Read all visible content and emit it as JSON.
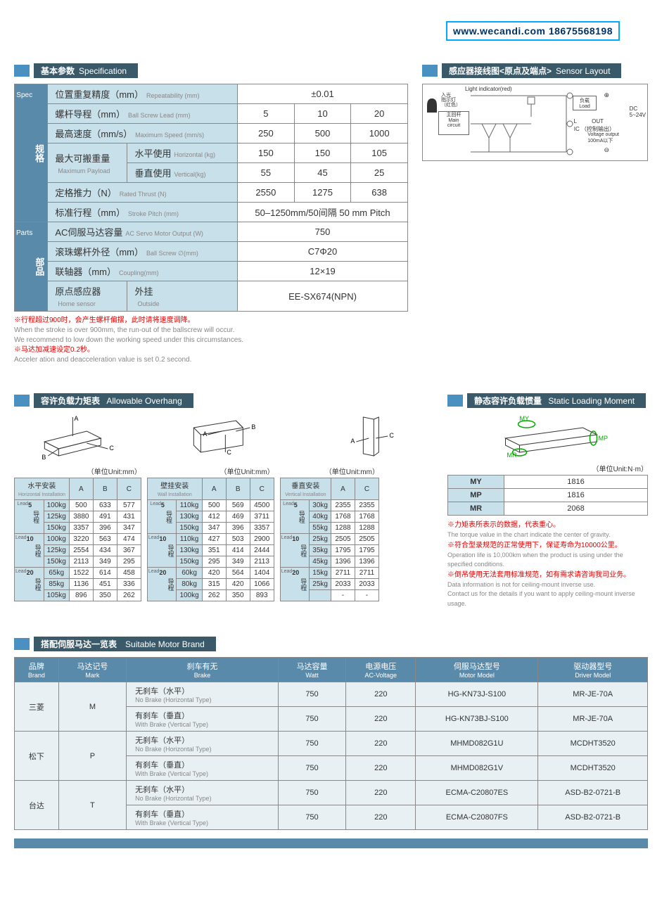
{
  "watermark": "www.wecandi.com 18675568198",
  "sections": {
    "spec": {
      "cn": "基本参数",
      "en": "Specification"
    },
    "sensor": {
      "cn": "感应器接线图<原点及端点>",
      "en": "Sensor Layout"
    },
    "overhang": {
      "cn": "容许负载力矩表",
      "en": "Allowable Overhang"
    },
    "static": {
      "cn": "静态容许负载惯量",
      "en": "Static Loading Moment"
    },
    "motor": {
      "cn": "搭配伺服马达一览表",
      "en": "Suitable Motor Brand"
    }
  },
  "spec": {
    "side1": {
      "cn": "规格",
      "en": "Spec"
    },
    "side2": {
      "cn": "部品",
      "en": "Parts"
    },
    "rows": [
      {
        "label_cn": "位置重复精度（mm）",
        "label_en": "Repeatability (mm)",
        "vals": [
          "±0.01"
        ],
        "span": 3
      },
      {
        "label_cn": "螺杆导程（mm）",
        "label_en": "Ball Screw Lead (mm)",
        "vals": [
          "5",
          "10",
          "20"
        ]
      },
      {
        "label_cn": "最高速度（mm/s）",
        "label_en": "Maximum Speed (mm/s)",
        "vals": [
          "250",
          "500",
          "1000"
        ]
      },
      {
        "label_cn": "最大可搬重量",
        "label_en": "Maximum Payload",
        "sub1_cn": "水平使用",
        "sub1_en": "Horizontal (kg)",
        "sub1_vals": [
          "150",
          "150",
          "105"
        ],
        "sub2_cn": "垂直使用",
        "sub2_en": "Vertical(kg)",
        "sub2_vals": [
          "55",
          "45",
          "25"
        ]
      },
      {
        "label_cn": "定格推力（N）",
        "label_en": "Rated Thrust (N)",
        "vals": [
          "2550",
          "1275",
          "638"
        ]
      },
      {
        "label_cn": "标准行程（mm）",
        "label_en": "Stroke Pitch (mm)",
        "vals": [
          "50–1250mm/50间隔 50 mm Pitch"
        ],
        "span": 3
      }
    ],
    "parts": [
      {
        "label_cn": "AC伺服马达容量",
        "label_en": "AC Servo Motor Output (W)",
        "vals": [
          "750"
        ],
        "span": 3
      },
      {
        "label_cn": "滚珠螺杆外径（mm）",
        "label_en": "Ball Screw ∅(mm)",
        "vals": [
          "C7Φ20"
        ],
        "span": 3
      },
      {
        "label_cn": "联轴器（mm）",
        "label_en": "Coupling(mm)",
        "vals": [
          "12×19"
        ],
        "span": 3
      },
      {
        "label_cn": "原点感应器",
        "label_en": "Home sensor",
        "sub_cn": "外挂",
        "sub_en": "Outside",
        "vals": [
          "EE-SX674(NPN)"
        ],
        "span": 3
      }
    ]
  },
  "notes": [
    {
      "red": "※行程超过900时，会产生螺杆偏摆，此时请将速度调降。",
      "gray": [
        "When the stroke is over 900mm, the run-out of the ballscrew will occur.",
        "We recommend to low down the working speed under this circumstances."
      ]
    },
    {
      "red": "※马达加减速设定0.2秒。",
      "gray": [
        "Acceler ation and deacceleration value is set 0.2 second."
      ]
    }
  ],
  "sensor": {
    "light_indicator": "Light indicator(red)",
    "light_cn": "入光\n指示灯\n（红色）",
    "main_cn": "主回杆",
    "main_en": "Main\ncircuit",
    "load_cn": "负载",
    "load_en": "Load",
    "out": "OUT",
    "ic_cn": "（控制输出）",
    "volt": "Voltage output\n100mA以下",
    "dc": "DC\n5~24V",
    "plus": "⊕",
    "minus": "⊖",
    "l": "L",
    "ic": "IC"
  },
  "unit_mm": "（单位Unit:mm）",
  "unit_nm": "（单位Unit:N·m）",
  "overhang_tables": [
    {
      "title_cn": "水平安装",
      "title_en": "Horizontal Installation",
      "cols": [
        "A",
        "B",
        "C"
      ],
      "leads": [
        {
          "n": "5",
          "rows": [
            [
              "100kg",
              "500",
              "633",
              "577"
            ],
            [
              "125kg",
              "3880",
              "491",
              "431"
            ],
            [
              "150kg",
              "3357",
              "396",
              "347"
            ]
          ]
        },
        {
          "n": "10",
          "rows": [
            [
              "100kg",
              "3220",
              "563",
              "474"
            ],
            [
              "125kg",
              "2554",
              "434",
              "367"
            ],
            [
              "150kg",
              "2113",
              "349",
              "295"
            ]
          ]
        },
        {
          "n": "20",
          "rows": [
            [
              "65kg",
              "1522",
              "614",
              "458"
            ],
            [
              "85kg",
              "1136",
              "451",
              "336"
            ],
            [
              "105kg",
              "896",
              "350",
              "262"
            ]
          ]
        }
      ]
    },
    {
      "title_cn": "壁挂安装",
      "title_en": "Wall Installation",
      "cols": [
        "A",
        "B",
        "C"
      ],
      "leads": [
        {
          "n": "5",
          "rows": [
            [
              "110kg",
              "500",
              "569",
              "4500"
            ],
            [
              "130kg",
              "412",
              "469",
              "3711"
            ],
            [
              "150kg",
              "347",
              "396",
              "3357"
            ]
          ]
        },
        {
          "n": "10",
          "rows": [
            [
              "110kg",
              "427",
              "503",
              "2900"
            ],
            [
              "130kg",
              "351",
              "414",
              "2444"
            ],
            [
              "150kg",
              "295",
              "349",
              "2113"
            ]
          ]
        },
        {
          "n": "20",
          "rows": [
            [
              "60kg",
              "420",
              "564",
              "1404"
            ],
            [
              "80kg",
              "315",
              "420",
              "1066"
            ],
            [
              "100kg",
              "262",
              "350",
              "893"
            ]
          ]
        }
      ]
    },
    {
      "title_cn": "垂直安装",
      "title_en": "Vertical Installation",
      "cols": [
        "A",
        "C"
      ],
      "leads": [
        {
          "n": "5",
          "rows": [
            [
              "30kg",
              "2355",
              "2355"
            ],
            [
              "40kg",
              "1768",
              "1768"
            ],
            [
              "55kg",
              "1288",
              "1288"
            ]
          ]
        },
        {
          "n": "10",
          "rows": [
            [
              "25kg",
              "2505",
              "2505"
            ],
            [
              "35kg",
              "1795",
              "1795"
            ],
            [
              "45kg",
              "1396",
              "1396"
            ]
          ]
        },
        {
          "n": "20",
          "rows": [
            [
              "15kg",
              "2711",
              "2711"
            ],
            [
              "25kg",
              "2033",
              "2033"
            ],
            [
              "",
              "-",
              "-"
            ]
          ]
        }
      ]
    }
  ],
  "static": {
    "cols": [
      "MY",
      "MP",
      "MR"
    ],
    "rows": [
      [
        "MY",
        "1816"
      ],
      [
        "MP",
        "1816"
      ],
      [
        "MR",
        "2068"
      ]
    ]
  },
  "static_notes": [
    {
      "red": "※力矩表所表示的数据，代表重心。",
      "gray": "The torque value in the chart indicate the center of gravity."
    },
    {
      "red": "※符合型录规范的正常使用下，保证寿命为10000公里。",
      "gray": "Operation life is 10,000km when the product is using under the specified conditions."
    },
    {
      "red": "※倒吊使用无法套用标准规范，如有需求请咨询我司业务。",
      "gray": "Data information is not for ceiling-mount inverse use.\nContact us for the details if you want to apply ceiling-mount inverse usage."
    }
  ],
  "motor": {
    "headers": [
      {
        "cn": "品牌",
        "en": "Brand"
      },
      {
        "cn": "马达记号",
        "en": "Mark"
      },
      {
        "cn": "刹车有无",
        "en": "Brake"
      },
      {
        "cn": "马达容量",
        "en": "Watt"
      },
      {
        "cn": "电源电压",
        "en": "AC-Voltage"
      },
      {
        "cn": "伺服马达型号",
        "en": "Motor Model"
      },
      {
        "cn": "驱动器型号",
        "en": "Driver Model"
      }
    ],
    "brands": [
      {
        "brand": "三菱",
        "mark": "M",
        "rows": [
          {
            "brake_cn": "无刹车（水平）",
            "brake_en": "No Brake (Horizontal Type)",
            "watt": "750",
            "volt": "220",
            "model": "HG-KN73J-S100",
            "driver": "MR-JE-70A"
          },
          {
            "brake_cn": "有刹车（垂直）",
            "brake_en": "With Brake (Vertical Type)",
            "watt": "750",
            "volt": "220",
            "model": "HG-KN73BJ-S100",
            "driver": "MR-JE-70A"
          }
        ]
      },
      {
        "brand": "松下",
        "mark": "P",
        "rows": [
          {
            "brake_cn": "无刹车（水平）",
            "brake_en": "No Brake (Horizontal Type)",
            "watt": "750",
            "volt": "220",
            "model": "MHMD082G1U",
            "driver": "MCDHT3520"
          },
          {
            "brake_cn": "有刹车（垂直）",
            "brake_en": "With Brake (Vertical Type)",
            "watt": "750",
            "volt": "220",
            "model": "MHMD082G1V",
            "driver": "MCDHT3520"
          }
        ]
      },
      {
        "brand": "台达",
        "mark": "T",
        "rows": [
          {
            "brake_cn": "无刹车（水平）",
            "brake_en": "No Brake (Horizontal Type)",
            "watt": "750",
            "volt": "220",
            "model": "ECMA-C20807ES",
            "driver": "ASD-B2-0721-B"
          },
          {
            "brake_cn": "有刹车（垂直）",
            "brake_en": "With Brake (Vertical Type)",
            "watt": "750",
            "volt": "220",
            "model": "ECMA-C20807FS",
            "driver": "ASD-B2-0721-B"
          }
        ]
      }
    ]
  },
  "lead_label": {
    "cn": "导程",
    "en": "Lead"
  }
}
